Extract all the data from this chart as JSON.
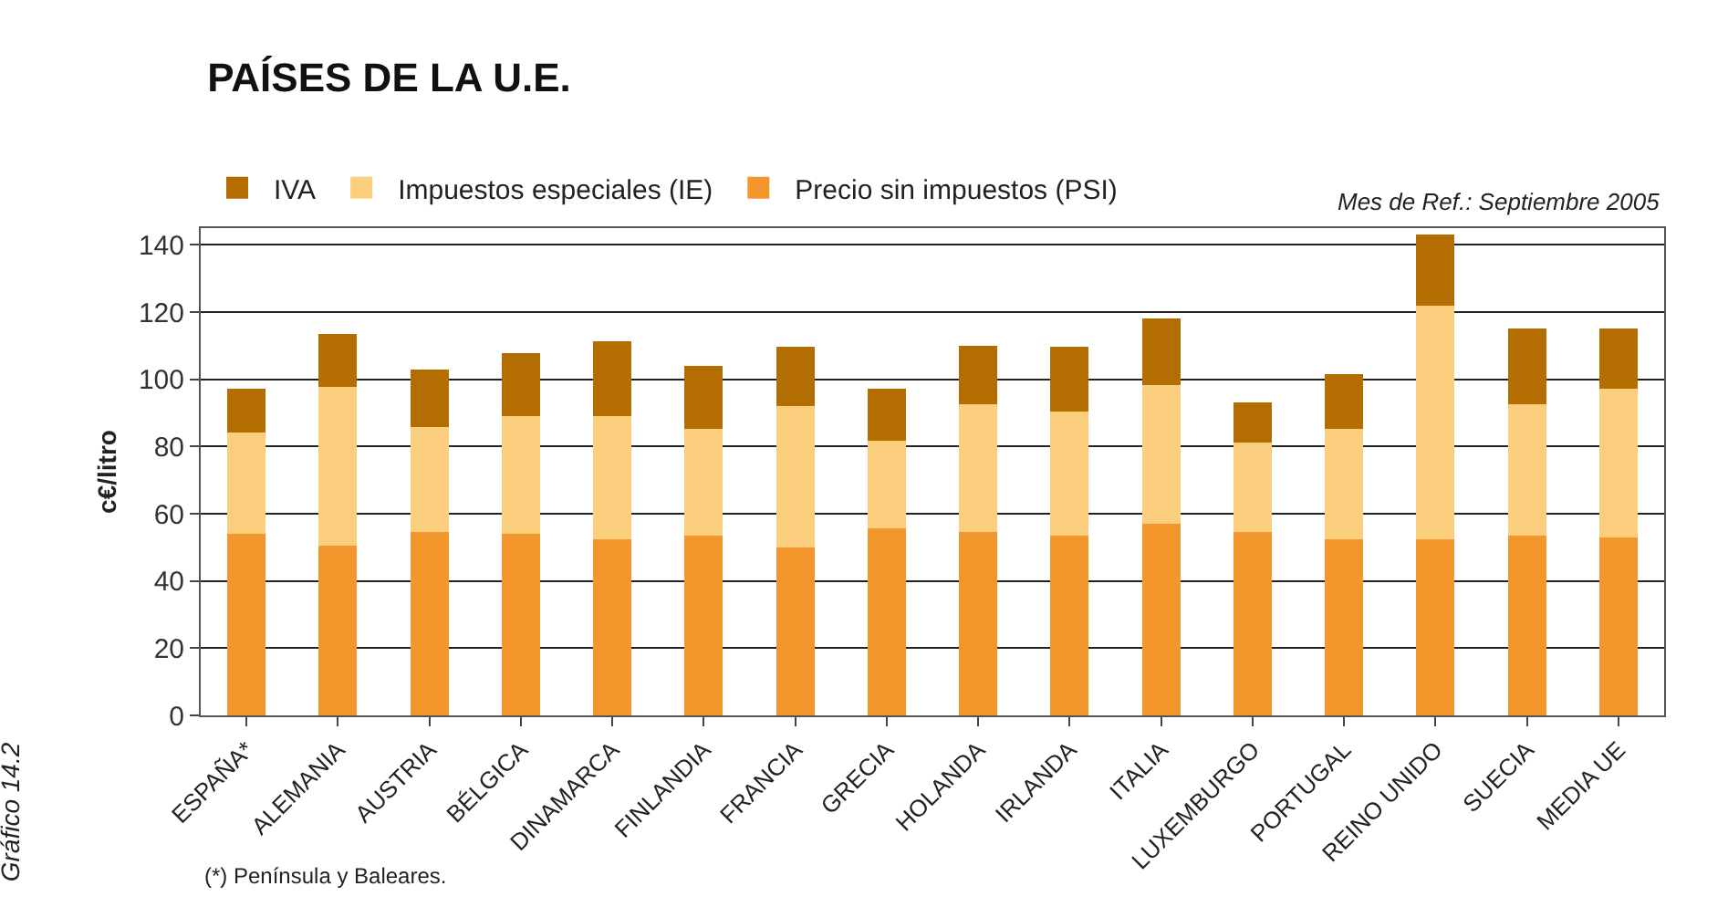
{
  "chart_data": {
    "type": "bar",
    "title": "PAÍSES DE LA U.E.",
    "ylabel": "c€/litro",
    "categories": [
      "ESPAÑA*",
      "ALEMANIA",
      "AUSTRIA",
      "BÉLGICA",
      "DINAMARCA",
      "FINLANDIA",
      "FRANCIA",
      "GRECIA",
      "HOLANDA",
      "IRLANDA",
      "ITALIA",
      "LUXEMBURGO",
      "PORTUGAL",
      "REINO UNIDO",
      "SUECIA",
      "MEDIA UE"
    ],
    "stacked": true,
    "series": [
      {
        "name": "Precio sin impuestos (PSI)",
        "color": "#f3962b",
        "values": [
          54.0,
          50.6,
          54.6,
          54.0,
          52.3,
          53.5,
          50.1,
          55.7,
          54.6,
          53.5,
          56.9,
          54.6,
          52.3,
          52.3,
          53.5,
          52.9
        ]
      },
      {
        "name": "Impuestos especiales (IE)",
        "color": "#fbcf7d",
        "values": [
          30.1,
          47.1,
          31.2,
          35.2,
          36.9,
          31.7,
          41.9,
          26.1,
          38.0,
          36.8,
          41.3,
          26.6,
          32.9,
          69.7,
          39.1,
          44.2
        ]
      },
      {
        "name": "IVA",
        "color": "#b36d00",
        "values": [
          13.0,
          15.8,
          17.0,
          18.7,
          22.1,
          18.7,
          17.6,
          15.3,
          17.5,
          19.3,
          19.9,
          11.9,
          16.4,
          21.0,
          22.6,
          18.1
        ]
      }
    ],
    "ylim": [
      0,
      145
    ],
    "yticks": [
      0,
      20,
      40,
      60,
      80,
      100,
      120,
      140
    ],
    "grid": "y",
    "legend": "top",
    "annotations": [
      "Mes de Ref.: Septiembre 2005",
      "(*) Península y Baleares.",
      "Gráfico 14.2"
    ]
  }
}
